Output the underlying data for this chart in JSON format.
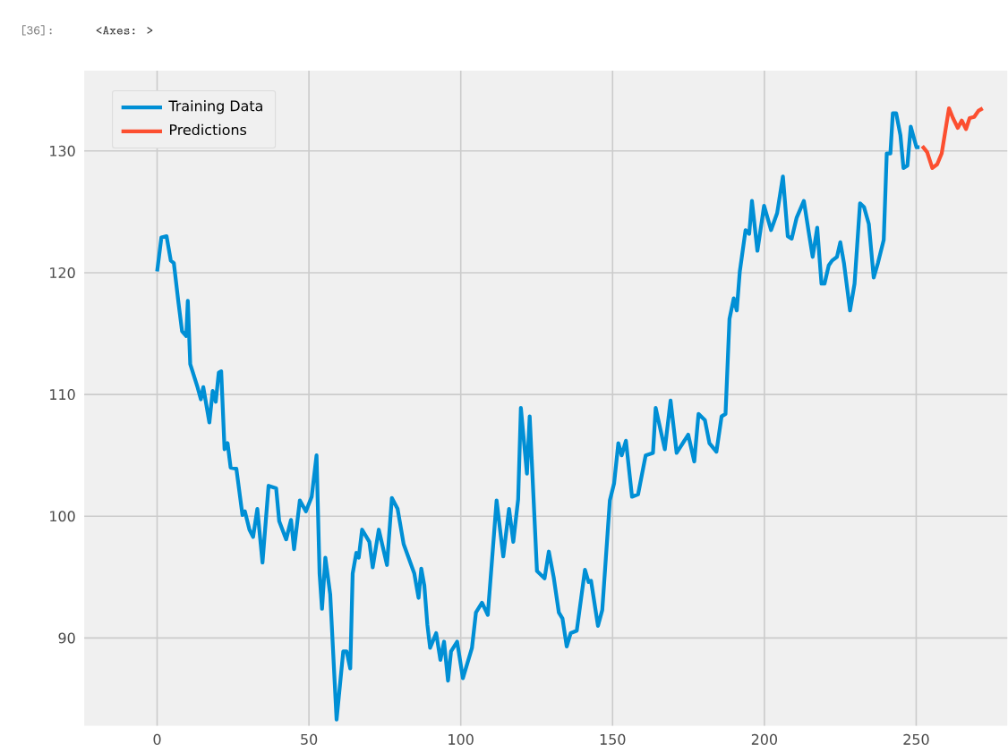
{
  "chart_data": {
    "type": "line",
    "annotations": [
      "[36]:",
      "<Axes: >"
    ],
    "xlim": [
      -24,
      280
    ],
    "ylim": [
      82.8,
      136.6
    ],
    "xticks": [
      0,
      50,
      100,
      150,
      200,
      250
    ],
    "yticks": [
      90,
      100,
      110,
      120,
      130
    ],
    "grid": true,
    "legend": "top left",
    "series": [
      {
        "name": "Training Data",
        "color": "#008fd5",
        "x": [
          0,
          1.4,
          3.1,
          4.5,
          5.5,
          7,
          8.2,
          9.6,
          10.1,
          10.9,
          13.3,
          14.4,
          15.2,
          17.2,
          18.3,
          19.3,
          20.3,
          21.1,
          22.2,
          23.2,
          24.2,
          26.1,
          28.1,
          28.9,
          30.4,
          31.6,
          33,
          34.7,
          36.7,
          39.2,
          40.2,
          42.5,
          44.1,
          45.1,
          47,
          49,
          50.9,
          52.5,
          53.5,
          54.3,
          55.4,
          57,
          59.1,
          61.3,
          62.4,
          63.6,
          64.4,
          65.6,
          66.4,
          67.5,
          69.9,
          71,
          73,
          75.7,
          77.3,
          79.2,
          81.2,
          84.7,
          86.1,
          87,
          88,
          89,
          89.9,
          91.9,
          93.3,
          94.5,
          95.8,
          96.8,
          98.8,
          100.7,
          103.7,
          105,
          107,
          108.9,
          111.8,
          114,
          115.9,
          117.3,
          118.9,
          119.8,
          121.8,
          122.7,
          125.1,
          127.6,
          129,
          130.6,
          132.3,
          133.5,
          134.9,
          136.2,
          138.2,
          140.9,
          142.1,
          142.9,
          145.2,
          146.6,
          149.1,
          150.5,
          151.9,
          153,
          154.4,
          156.4,
          158.4,
          160.9,
          163.3,
          164.2,
          167.2,
          169.1,
          171.1,
          174.9,
          176.9,
          178.3,
          180.4,
          181.9,
          184.2,
          185.9,
          187.2,
          188.5,
          189.9,
          190.9,
          191.9,
          193.8,
          195,
          195.9,
          197.7,
          199.9,
          202.2,
          204.2,
          206.1,
          207.7,
          209,
          210.6,
          213,
          214.5,
          215.9,
          217.4,
          218.8,
          219.8,
          221.2,
          222.3,
          223.9,
          225,
          226.2,
          228.2,
          229.7,
          231.5,
          232.8,
          234.4,
          236,
          237.4,
          239.3,
          240.3,
          241.5,
          242.3,
          243.4,
          244.8,
          245.8,
          247.1,
          248.2,
          250.1,
          251.1
        ],
        "values": [
          120.1,
          122.9,
          123,
          121,
          120.8,
          117.6,
          115.2,
          114.8,
          117.7,
          112.5,
          110.6,
          109.6,
          110.6,
          107.7,
          110.3,
          109.4,
          111.8,
          111.9,
          105.5,
          106,
          104,
          103.9,
          100.1,
          100.4,
          98.9,
          98.3,
          100.6,
          96.2,
          102.5,
          102.3,
          99.6,
          98.1,
          99.7,
          97.3,
          101.3,
          100.4,
          101.6,
          105,
          95.3,
          92.4,
          96.6,
          93.6,
          83.3,
          88.9,
          88.9,
          87.5,
          95.3,
          97,
          96.6,
          98.9,
          97.9,
          95.8,
          98.9,
          96,
          101.5,
          100.6,
          97.7,
          95.3,
          93.3,
          95.7,
          94.3,
          91.1,
          89.2,
          90.4,
          88.2,
          89.7,
          86.5,
          88.9,
          89.7,
          86.7,
          89.2,
          92.1,
          92.9,
          91.9,
          101.3,
          96.7,
          100.6,
          97.9,
          101.4,
          108.9,
          103.5,
          108.2,
          95.5,
          94.9,
          97.1,
          95,
          92.1,
          91.6,
          89.3,
          90.4,
          90.6,
          95.6,
          94.6,
          94.7,
          91,
          92.3,
          101.3,
          102.7,
          106,
          105,
          106.2,
          101.6,
          101.8,
          105,
          105.2,
          108.9,
          105.5,
          109.5,
          105.2,
          106.7,
          104.5,
          108.4,
          107.9,
          106,
          105.3,
          108.2,
          108.4,
          116.2,
          117.9,
          116.9,
          120.1,
          123.5,
          123.2,
          125.9,
          121.8,
          125.5,
          123.5,
          124.9,
          127.9,
          123,
          122.8,
          124.5,
          125.9,
          123.5,
          121.3,
          123.7,
          119.1,
          119.1,
          120.6,
          121,
          121.3,
          122.5,
          120.8,
          116.9,
          119.1,
          125.7,
          125.4,
          124,
          119.6,
          120.8,
          122.7,
          129.8,
          129.8,
          133.1,
          133.1,
          131.3,
          128.6,
          128.8,
          132,
          130.3,
          130.3
        ]
      },
      {
        "name": "Predictions",
        "color": "#fc4f30",
        "x": [
          252,
          253.6,
          255.3,
          256.9,
          258.4,
          260.8,
          262.1,
          263.7,
          265,
          266.4,
          267.6,
          269.1,
          270.5,
          271.9
        ],
        "values": [
          130.4,
          129.9,
          128.6,
          128.9,
          129.8,
          133.5,
          132.7,
          131.9,
          132.5,
          131.8,
          132.7,
          132.8,
          133.3,
          133.5
        ]
      }
    ]
  }
}
